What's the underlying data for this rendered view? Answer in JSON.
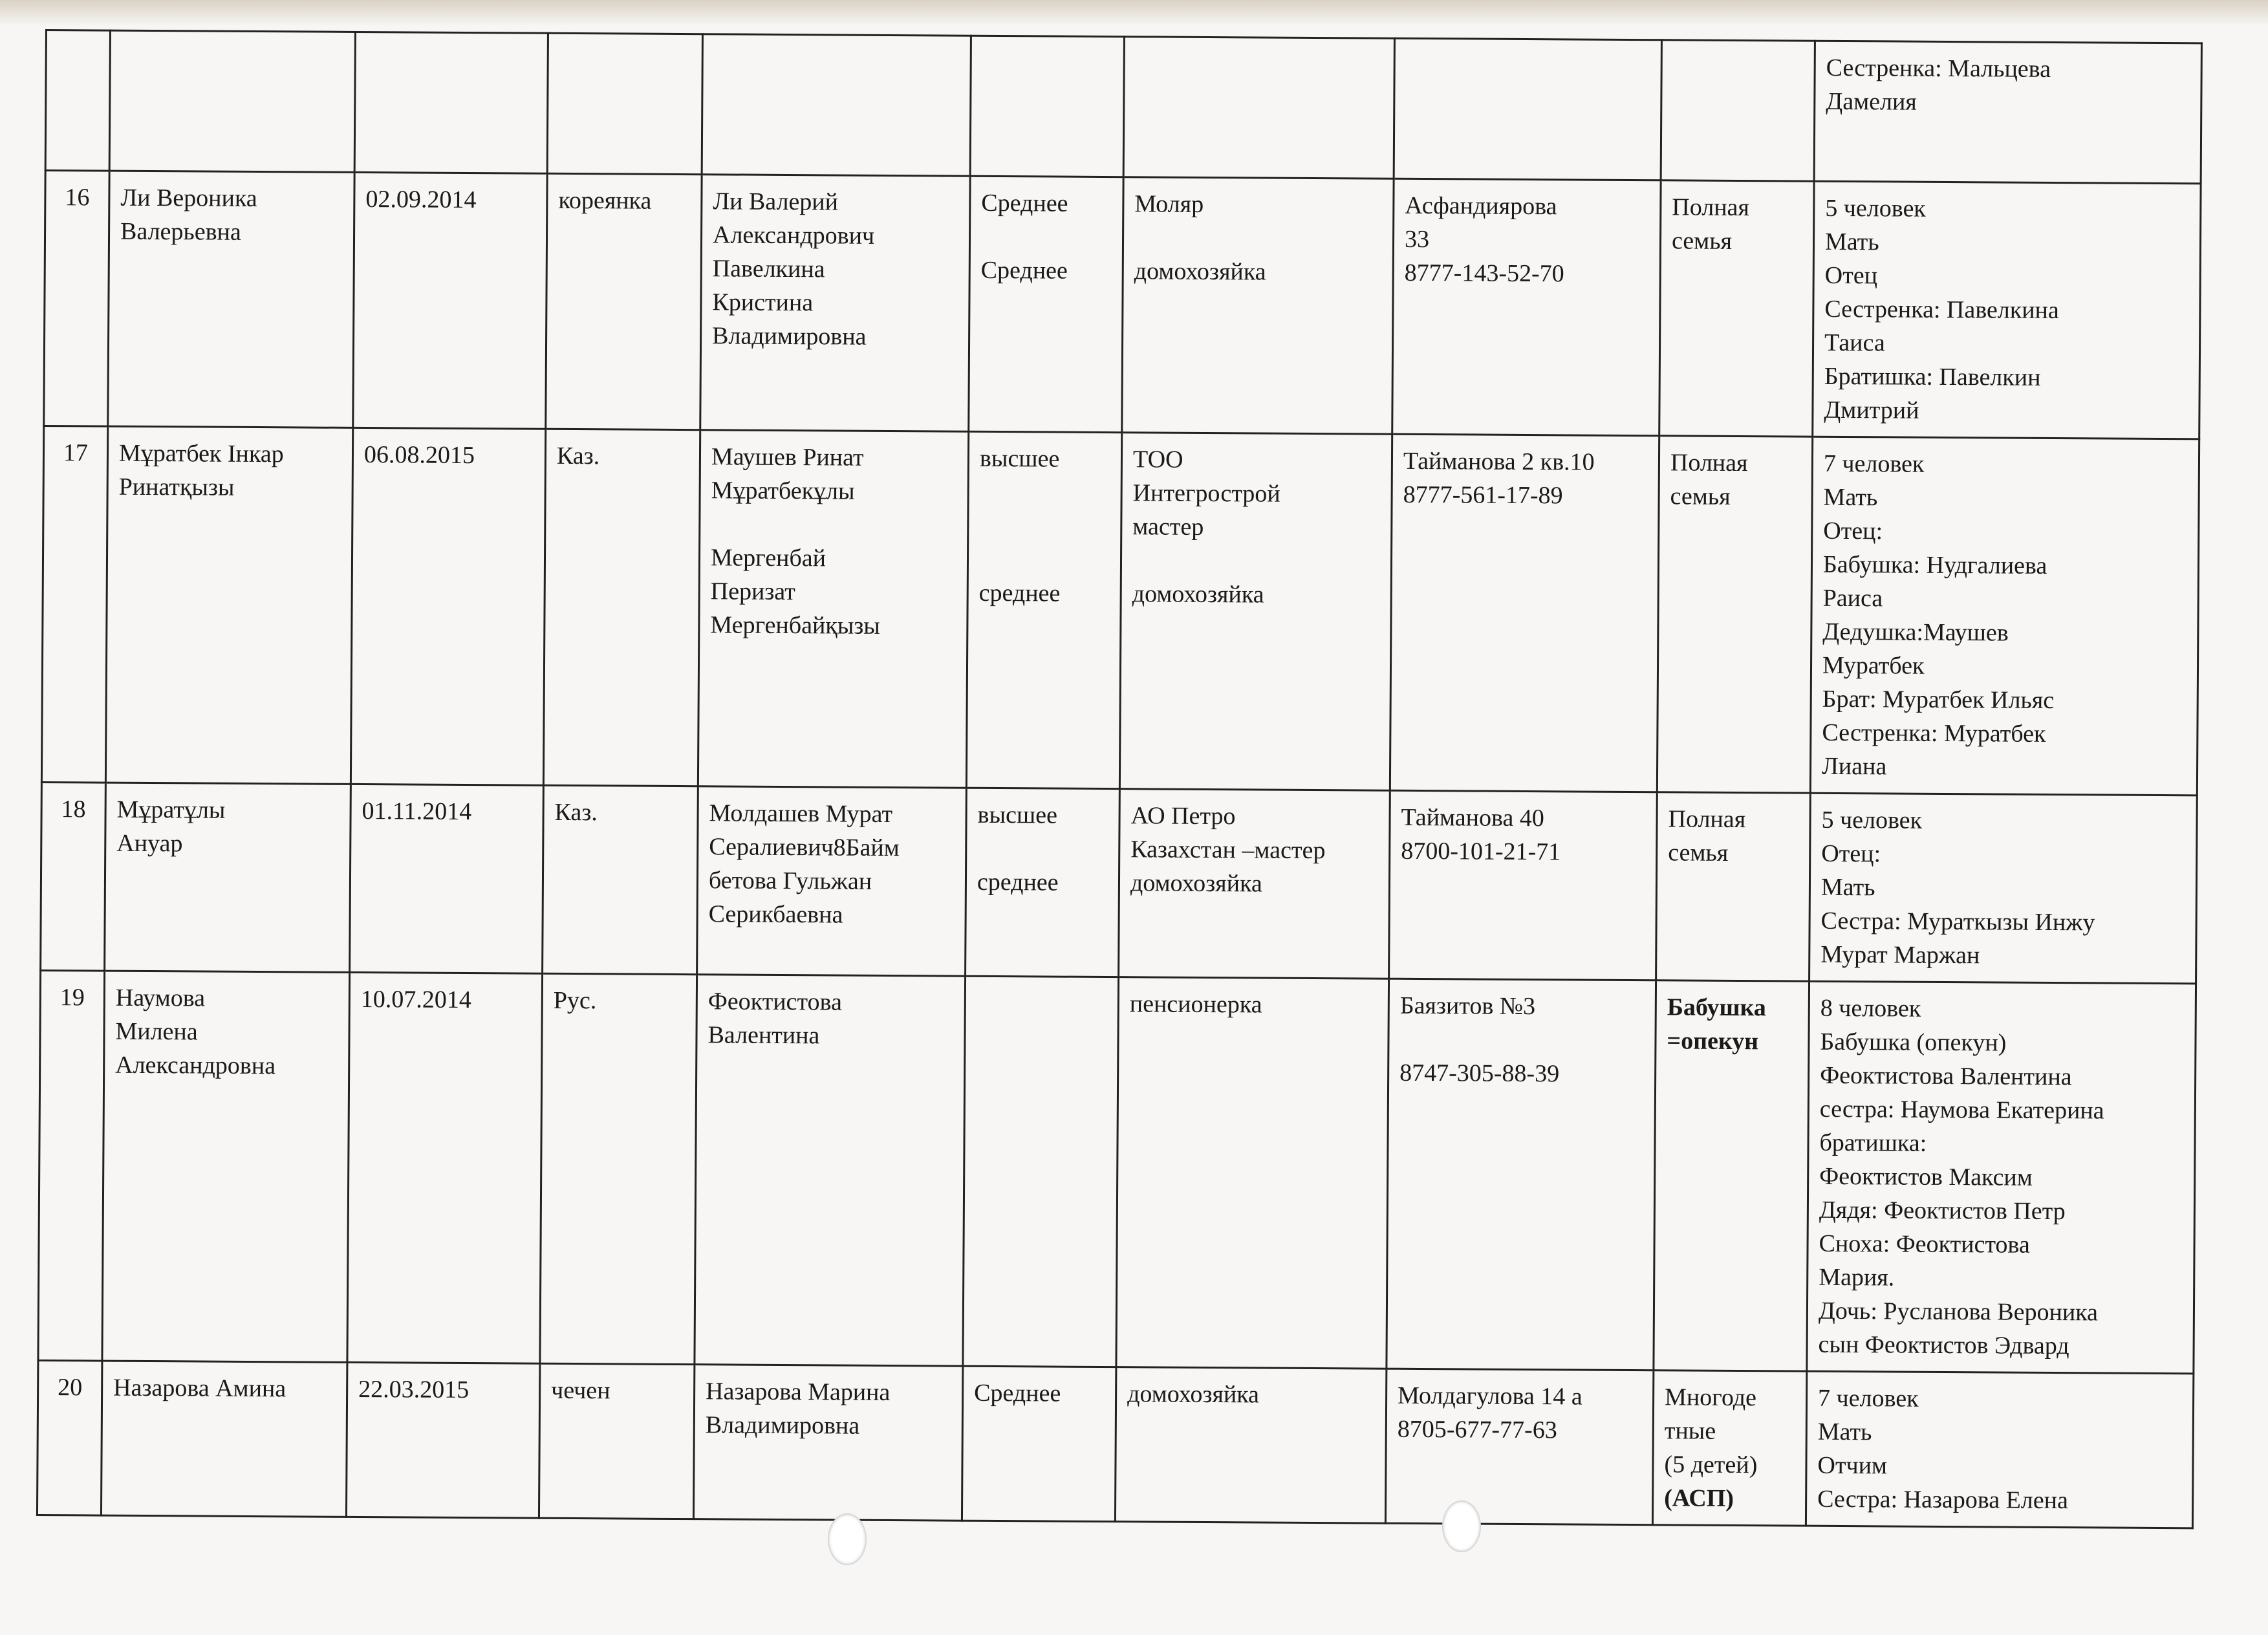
{
  "table": {
    "rows": [
      {
        "num": "",
        "name": "",
        "dob": "",
        "nationality": "",
        "parents": "",
        "education": "",
        "work": "",
        "address": "",
        "family_type": "",
        "family_type_bold": "",
        "family": "Сестренка: Мальцева\nДамелия"
      },
      {
        "num": "16",
        "name": "Ли Вероника\nВалерьевна",
        "dob": "02.09.2014",
        "nationality": "кореянка",
        "parents": "Ли Валерий\nАлександрович\nПавелкина\nКристина\nВладимировна",
        "education": "Среднее\n\nСреднее",
        "work": "Моляр\n\nдомохозяйка",
        "address": "Асфандиярова\n33\n8777-143-52-70",
        "family_type": "Полная\nсемья",
        "family_type_bold": "",
        "family": "5 человек\nМать\nОтец\nСестренка: Павелкина\nТаиса\nБратишка: Павелкин\nДмитрий"
      },
      {
        "num": "17",
        "name": "Мұратбек Інкар\nРинатқызы",
        "dob": "06.08.2015",
        "nationality": "Каз.",
        "parents": "Маушев Ринат\nМұратбекұлы\n\nМергенбай\nПеризат\nМергенбайқызы",
        "education": "высшее\n\n\n\nсреднее",
        "work": "ТОО\nИнтегрострой\nмастер\n\nдомохозяйка",
        "address": "Тайманова 2 кв.10\n8777-561-17-89",
        "family_type": "Полная\nсемья",
        "family_type_bold": "",
        "family": "7 человек\nМать\nОтец:\nБабушка: Нудгалиева\nРаиса\nДедушка:Маушев\nМуратбек\nБрат: Муратбек Ильяс\nСестренка: Муратбек\nЛиана"
      },
      {
        "num": "18",
        "name": "Мұратұлы\nАнуар",
        "dob": "01.11.2014",
        "nationality": "Каз.",
        "parents": "Молдашев Мурат\nСералиевич8Байм\nбетова Гульжан\nСерикбаевна",
        "education": "высшее\n\nсреднее",
        "work": "АО Петро\nКазахстан –мастер\nдомохозяйка",
        "address": "Тайманова 40\n8700-101-21-71",
        "family_type": "Полная\nсемья",
        "family_type_bold": "",
        "family": "5 человек\nОтец:\nМать\nСестра: Мураткызы Инжу\nМурат Маржан"
      },
      {
        "num": "19",
        "name": "Наумова\nМилена\nАлександровна",
        "dob": "10.07.2014",
        "nationality": "Рус.",
        "parents": "Феоктистова\nВалентина",
        "education": "",
        "work": "пенсионерка",
        "address": "Баязитов №3\n\n8747-305-88-39",
        "family_type": "",
        "family_type_bold": "Бабушка\n=опекун",
        "family": "8 человек\nБабушка (опекун)\nФеоктистова Валентина\nсестра: Наумова Екатерина\nбратишка:\nФеоктистов Максим\nДядя: Феоктистов Петр\nСноха: Феоктистова\nМария.\nДочь: Русланова Вероника\nсын Феоктистов Эдвард"
      },
      {
        "num": "20",
        "name": "Назарова Амина",
        "dob": "22.03.2015",
        "nationality": "чечен",
        "parents": "Назарова Марина\nВладимировна",
        "education": "Среднее",
        "work": "домохозяйка",
        "address": "Молдагулова 14 а\n8705-677-77-63",
        "family_type": "Многоде\nтные\n(5 детей)",
        "family_type_bold": "(АСП)",
        "family": "7 человек\nМать\nОтчим\nСестра: Назарова Елена"
      }
    ]
  }
}
